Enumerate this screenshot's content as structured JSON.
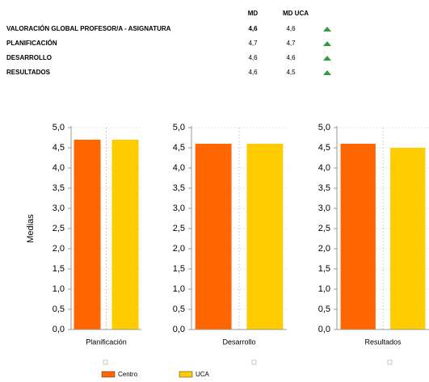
{
  "table": {
    "header": [
      "MD",
      "MD UCA"
    ],
    "rows": [
      [
        "VALORACIÓN GLOBAL PROFESOR/A - ASIGNATURA",
        "4,6",
        "4,6"
      ],
      [
        "PLANIFICACIÓN",
        "4,7",
        "4,7"
      ],
      [
        "DESARROLLO",
        "4,6",
        "4,6"
      ],
      [
        "RESULTADOS",
        "4,6",
        "4,5"
      ]
    ]
  },
  "series": [
    {
      "name": "Centro",
      "color": "#ff6600"
    },
    {
      "name": "UCA",
      "color": "#ffcc00"
    }
  ],
  "chart_data": [
    {
      "type": "bar",
      "xlabel": "Planificación",
      "ylabel": "Medias",
      "values": [
        4.7,
        4.7
      ],
      "ylim": [
        0,
        5
      ],
      "grid": true,
      "yticks": [
        {
          "value": 0,
          "label": "0,0"
        },
        {
          "value": 0.5,
          "label": "0,5"
        },
        {
          "value": 1,
          "label": "1,0"
        },
        {
          "value": 1.5,
          "label": "1,5"
        },
        {
          "value": 2,
          "label": "2,0"
        },
        {
          "value": 2.5,
          "label": "2,5"
        },
        {
          "value": 3,
          "label": "3,0"
        },
        {
          "value": 3.5,
          "label": "3,5"
        },
        {
          "value": 4,
          "label": "4,0"
        },
        {
          "value": 4.5,
          "label": "4,5"
        },
        {
          "value": 5,
          "label": "5,0"
        }
      ]
    },
    {
      "type": "bar",
      "xlabel": "Desarrollo",
      "values": [
        4.6,
        4.6
      ],
      "ylim": [
        0,
        5
      ],
      "grid": true,
      "yticks": [
        {
          "value": 0,
          "label": "0,0"
        },
        {
          "value": 0.5,
          "label": "0,5"
        },
        {
          "value": 1,
          "label": "1,0"
        },
        {
          "value": 1.5,
          "label": "1,5"
        },
        {
          "value": 2,
          "label": "2,0"
        },
        {
          "value": 2.5,
          "label": "2,5"
        },
        {
          "value": 3,
          "label": "3,0"
        },
        {
          "value": 3.5,
          "label": "3,5"
        },
        {
          "value": 4,
          "label": "4,0"
        },
        {
          "value": 4.5,
          "label": "4,5"
        },
        {
          "value": 5,
          "label": "5,0"
        }
      ]
    },
    {
      "type": "bar",
      "xlabel": "Resultados",
      "values": [
        4.6,
        4.5
      ],
      "ylim": [
        0,
        5
      ],
      "grid": true,
      "yticks": [
        {
          "value": 0,
          "label": "0,0"
        },
        {
          "value": 0.5,
          "label": "0,5"
        },
        {
          "value": 1,
          "label": "1,0"
        },
        {
          "value": 1.5,
          "label": "1,5"
        },
        {
          "value": 2,
          "label": "2,0"
        },
        {
          "value": 2.5,
          "label": "2,5"
        },
        {
          "value": 3,
          "label": "3,0"
        },
        {
          "value": 3.5,
          "label": "3,5"
        },
        {
          "value": 4,
          "label": "4,0"
        },
        {
          "value": 4.5,
          "label": "4,5"
        },
        {
          "value": 5,
          "label": "5,0"
        }
      ]
    }
  ]
}
